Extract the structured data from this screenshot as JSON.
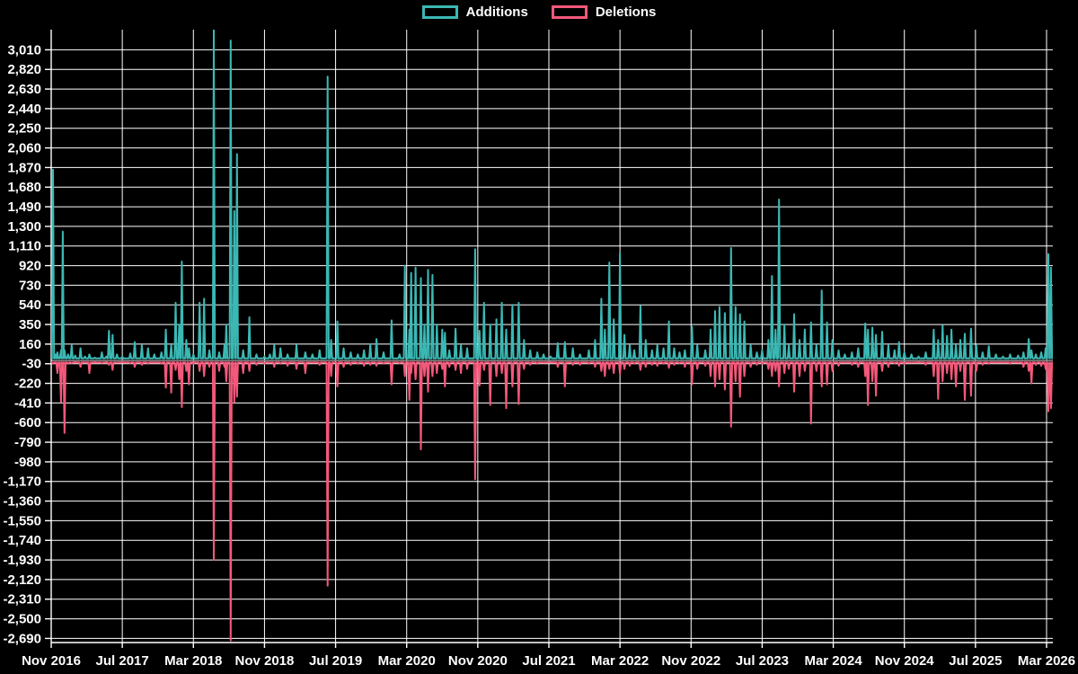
{
  "legend": {
    "additions_label": "Additions",
    "deletions_label": "Deletions"
  },
  "colors": {
    "background": "#000000",
    "grid": "#ffffff",
    "zero_line": "#888888",
    "text": "#ffffff",
    "additions": "#3bb8b4",
    "deletions": "#f4587a"
  },
  "chart_data": {
    "type": "line",
    "title": "",
    "xlabel": "",
    "ylabel": "",
    "legend_position": "top-center",
    "grid": true,
    "series_names": [
      "Additions",
      "Deletions"
    ],
    "x_tick_labels": [
      "Nov 2016",
      "Jul 2017",
      "Mar 2018",
      "Nov 2018",
      "Jul 2019",
      "Mar 2020",
      "Nov 2020",
      "Jul 2021",
      "Mar 2022",
      "Nov 2022",
      "Jul 2023",
      "Mar 2024",
      "Nov 2024",
      "Jul 2025",
      "Mar 2026"
    ],
    "x_tick_spacing_months": 8,
    "y_tick_values": [
      3010,
      2820,
      2630,
      2440,
      2250,
      2060,
      1870,
      1680,
      1490,
      1300,
      1110,
      920,
      730,
      540,
      350,
      160,
      -30,
      -220,
      -410,
      -600,
      -790,
      -980,
      -1170,
      -1360,
      -1550,
      -1740,
      -1930,
      -2120,
      -2310,
      -2500,
      -2690
    ],
    "y_tick_labels": [
      "3,010",
      "2,820",
      "2,630",
      "2,440",
      "2,250",
      "2,060",
      "1,870",
      "1,680",
      "1,490",
      "1,300",
      "1,110",
      "920",
      "730",
      "540",
      "350",
      "160",
      "-30",
      "-220",
      "-410",
      "-600",
      "-790",
      "-980",
      "-1,170",
      "-1,360",
      "-1,550",
      "-1,740",
      "-1,930",
      "-2,120",
      "-2,310",
      "-2,500",
      "-2,690"
    ],
    "ylim": [
      -2740,
      3205
    ],
    "x_range_months": [
      0,
      112.8
    ],
    "baseline": {
      "additions": 22,
      "deletions": -18
    },
    "spike_halfwidth_months": 0.12,
    "points_format": [
      "months_since_nov_2016",
      "additions",
      "deletions"
    ],
    "points": [
      [
        0.0,
        30,
        -15
      ],
      [
        0.2,
        1850,
        -30
      ],
      [
        0.5,
        60,
        -20
      ],
      [
        0.7,
        80,
        -120
      ],
      [
        1.1,
        100,
        -400
      ],
      [
        1.3,
        1250,
        -80
      ],
      [
        1.5,
        100,
        -700
      ],
      [
        1.9,
        60,
        -30
      ],
      [
        2.3,
        150,
        -25
      ],
      [
        2.7,
        50,
        -15
      ],
      [
        3.3,
        120,
        -60
      ],
      [
        3.8,
        40,
        -20
      ],
      [
        4.3,
        60,
        -120
      ],
      [
        4.9,
        30,
        -15
      ],
      [
        5.7,
        80,
        -25
      ],
      [
        6.2,
        40,
        -15
      ],
      [
        6.5,
        290,
        -40
      ],
      [
        6.9,
        250,
        -90
      ],
      [
        7.4,
        60,
        -20
      ],
      [
        8.0,
        40,
        -15
      ],
      [
        8.9,
        70,
        -25
      ],
      [
        9.4,
        180,
        -60
      ],
      [
        10.2,
        150,
        -40
      ],
      [
        10.9,
        120,
        -30
      ],
      [
        11.6,
        60,
        -20
      ],
      [
        12.4,
        80,
        -30
      ],
      [
        12.9,
        300,
        -260
      ],
      [
        13.5,
        150,
        -310
      ],
      [
        14.0,
        560,
        -90
      ],
      [
        14.4,
        350,
        -180
      ],
      [
        14.7,
        960,
        -450
      ],
      [
        15.2,
        200,
        -100
      ],
      [
        15.5,
        120,
        -230
      ],
      [
        16.0,
        60,
        -30
      ],
      [
        16.7,
        560,
        -100
      ],
      [
        17.2,
        600,
        -150
      ],
      [
        17.8,
        100,
        -60
      ],
      [
        18.3,
        3200,
        -1930
      ],
      [
        18.9,
        80,
        -100
      ],
      [
        19.5,
        150,
        -60
      ],
      [
        19.7,
        350,
        -200
      ],
      [
        20.2,
        3100,
        -2710
      ],
      [
        20.6,
        1450,
        -400
      ],
      [
        20.9,
        2000,
        -350
      ],
      [
        21.6,
        100,
        -120
      ],
      [
        22.3,
        420,
        -100
      ],
      [
        23.1,
        60,
        -40
      ],
      [
        24.0,
        40,
        -30
      ],
      [
        24.6,
        60,
        -20
      ],
      [
        25.1,
        150,
        -60
      ],
      [
        25.8,
        120,
        -30
      ],
      [
        26.6,
        60,
        -50
      ],
      [
        27.6,
        150,
        -80
      ],
      [
        28.6,
        80,
        -120
      ],
      [
        29.4,
        60,
        -20
      ],
      [
        30.2,
        100,
        -40
      ],
      [
        31.1,
        2750,
        -2180
      ],
      [
        31.5,
        200,
        -150
      ],
      [
        32.2,
        380,
        -250
      ],
      [
        32.9,
        120,
        -60
      ],
      [
        33.7,
        80,
        -40
      ],
      [
        34.5,
        60,
        -30
      ],
      [
        35.2,
        100,
        -50
      ],
      [
        35.9,
        160,
        -40
      ],
      [
        36.6,
        210,
        -50
      ],
      [
        37.4,
        80,
        -30
      ],
      [
        38.3,
        390,
        -230
      ],
      [
        39.2,
        60,
        -25
      ],
      [
        39.8,
        920,
        -150
      ],
      [
        40.3,
        300,
        -380
      ],
      [
        40.5,
        850,
        -120
      ],
      [
        41.0,
        900,
        -180
      ],
      [
        41.6,
        800,
        -860
      ],
      [
        42.0,
        350,
        -150
      ],
      [
        42.4,
        880,
        -300
      ],
      [
        42.9,
        830,
        -150
      ],
      [
        43.4,
        350,
        -120
      ],
      [
        44.0,
        300,
        -80
      ],
      [
        44.3,
        270,
        -250
      ],
      [
        44.8,
        100,
        -60
      ],
      [
        45.5,
        310,
        -90
      ],
      [
        46.1,
        150,
        -120
      ],
      [
        46.8,
        120,
        -80
      ],
      [
        47.7,
        1080,
        -1150
      ],
      [
        48.2,
        290,
        -240
      ],
      [
        48.7,
        560,
        -90
      ],
      [
        49.4,
        350,
        -430
      ],
      [
        50.1,
        400,
        -150
      ],
      [
        50.7,
        560,
        -120
      ],
      [
        51.2,
        300,
        -460
      ],
      [
        51.9,
        540,
        -250
      ],
      [
        52.6,
        560,
        -420
      ],
      [
        53.2,
        200,
        -80
      ],
      [
        53.9,
        100,
        -40
      ],
      [
        54.7,
        80,
        -30
      ],
      [
        55.4,
        60,
        -20
      ],
      [
        56.2,
        40,
        -15
      ],
      [
        57.0,
        170,
        -60
      ],
      [
        57.8,
        180,
        -250
      ],
      [
        58.7,
        120,
        -40
      ],
      [
        59.5,
        60,
        -40
      ],
      [
        60.5,
        100,
        -30
      ],
      [
        61.2,
        200,
        -60
      ],
      [
        61.9,
        600,
        -100
      ],
      [
        62.3,
        300,
        -150
      ],
      [
        62.8,
        950,
        -80
      ],
      [
        63.3,
        400,
        -120
      ],
      [
        64.0,
        1040,
        -130
      ],
      [
        64.5,
        250,
        -80
      ],
      [
        65.1,
        150,
        -50
      ],
      [
        65.6,
        100,
        -30
      ],
      [
        66.3,
        530,
        -90
      ],
      [
        66.9,
        200,
        -60
      ],
      [
        67.6,
        100,
        -40
      ],
      [
        68.2,
        150,
        -50
      ],
      [
        68.9,
        120,
        -30
      ],
      [
        69.5,
        380,
        -70
      ],
      [
        70.1,
        120,
        -40
      ],
      [
        70.7,
        80,
        -25
      ],
      [
        71.3,
        100,
        -60
      ],
      [
        72.1,
        330,
        -230
      ],
      [
        72.7,
        150,
        -80
      ],
      [
        73.6,
        100,
        -50
      ],
      [
        74.2,
        300,
        -150
      ],
      [
        74.7,
        480,
        -250
      ],
      [
        75.2,
        520,
        -180
      ],
      [
        75.8,
        460,
        -280
      ],
      [
        76.5,
        1090,
        -640
      ],
      [
        77.0,
        520,
        -200
      ],
      [
        77.5,
        450,
        -350
      ],
      [
        78.0,
        380,
        -150
      ],
      [
        78.7,
        150,
        -60
      ],
      [
        79.4,
        80,
        -40
      ],
      [
        80.0,
        100,
        -30
      ],
      [
        80.7,
        200,
        -80
      ],
      [
        81.1,
        820,
        -150
      ],
      [
        81.5,
        300,
        -100
      ],
      [
        81.9,
        1560,
        -250
      ],
      [
        82.5,
        350,
        -120
      ],
      [
        83.0,
        150,
        -80
      ],
      [
        83.6,
        450,
        -300
      ],
      [
        84.2,
        200,
        -150
      ],
      [
        84.8,
        300,
        -100
      ],
      [
        85.5,
        370,
        -610
      ],
      [
        86.1,
        150,
        -100
      ],
      [
        86.7,
        680,
        -250
      ],
      [
        87.3,
        370,
        -230
      ],
      [
        87.9,
        200,
        -100
      ],
      [
        88.6,
        100,
        -50
      ],
      [
        89.3,
        60,
        -20
      ],
      [
        90.1,
        80,
        -40
      ],
      [
        90.8,
        120,
        -60
      ],
      [
        91.6,
        360,
        -150
      ],
      [
        91.9,
        300,
        -430
      ],
      [
        92.4,
        320,
        -200
      ],
      [
        92.8,
        250,
        -340
      ],
      [
        93.5,
        280,
        -100
      ],
      [
        94.2,
        150,
        -60
      ],
      [
        94.9,
        100,
        -25
      ],
      [
        95.4,
        180,
        -50
      ],
      [
        96.0,
        80,
        -30
      ],
      [
        96.8,
        60,
        -20
      ],
      [
        97.6,
        40,
        -15
      ],
      [
        98.4,
        80,
        -40
      ],
      [
        99.3,
        300,
        -150
      ],
      [
        99.8,
        200,
        -370
      ],
      [
        100.3,
        340,
        -200
      ],
      [
        100.8,
        240,
        -120
      ],
      [
        101.3,
        300,
        -180
      ],
      [
        101.8,
        150,
        -250
      ],
      [
        102.3,
        200,
        -100
      ],
      [
        102.8,
        260,
        -380
      ],
      [
        103.5,
        310,
        -340
      ],
      [
        104.1,
        150,
        -100
      ],
      [
        104.8,
        80,
        -40
      ],
      [
        105.5,
        140,
        -30
      ],
      [
        106.3,
        60,
        -20
      ],
      [
        107.1,
        40,
        -20
      ],
      [
        107.9,
        60,
        -30
      ],
      [
        108.8,
        50,
        -20
      ],
      [
        109.4,
        80,
        -60
      ],
      [
        110.0,
        210,
        -100
      ],
      [
        110.3,
        100,
        -220
      ],
      [
        110.8,
        60,
        -40
      ],
      [
        111.4,
        80,
        -50
      ],
      [
        111.9,
        120,
        -80
      ],
      [
        112.2,
        1030,
        -490
      ],
      [
        112.5,
        900,
        -460
      ],
      [
        112.8,
        60,
        -60
      ]
    ]
  }
}
